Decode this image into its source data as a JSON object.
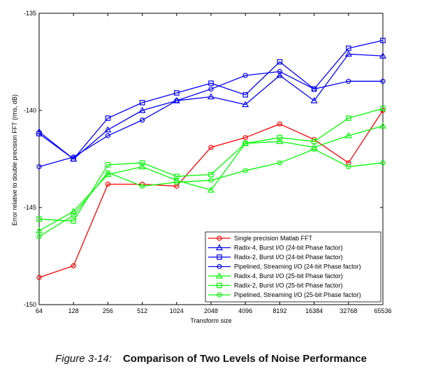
{
  "chart_data": {
    "type": "line",
    "xlabel": "Transform size",
    "ylabel": "Error relative to double precision FFT (rms, dB)",
    "categories": [
      "64",
      "128",
      "256",
      "512",
      "1024",
      "2048",
      "4096",
      "8192",
      "16384",
      "32768",
      "65536"
    ],
    "ylim": [
      -150,
      -135
    ],
    "yticks": [
      "-135",
      "-140",
      "-145",
      "-150"
    ],
    "grid": false,
    "legend_position": "bottom-right",
    "series": [
      {
        "name": "Single precision Matlab FFT",
        "color": "#ff0000",
        "marker": "circle",
        "values": [
          -148.6,
          -148.0,
          -143.8,
          -143.8,
          -143.9,
          -141.9,
          -141.4,
          -140.7,
          -141.5,
          -142.7,
          -140.0
        ]
      },
      {
        "name": "Radix-4, Burst I/O (24-bit Phase factor)",
        "color": "#0000ff",
        "marker": "triangle",
        "values": [
          -141.1,
          -142.5,
          -141.0,
          -140.0,
          -139.5,
          -139.3,
          -139.7,
          -138.2,
          -139.5,
          -137.1,
          -137.2
        ]
      },
      {
        "name": "Radix-2, Burst I/O (24-bit Phase factor)",
        "color": "#0000ff",
        "marker": "square",
        "values": [
          -141.2,
          -142.5,
          -140.4,
          -139.6,
          -139.1,
          -138.6,
          -139.2,
          -137.5,
          -138.9,
          -136.8,
          -136.4
        ]
      },
      {
        "name": "Pipelined, Streaming I/O (24-bit Phase factor)",
        "color": "#0000ff",
        "marker": "circle",
        "values": [
          -142.9,
          -142.4,
          -141.3,
          -140.5,
          -139.5,
          -138.9,
          -138.2,
          -138.0,
          -138.9,
          -138.5,
          -138.5
        ]
      },
      {
        "name": "Radix-4, Burst I/O (25-bit Phase factor)",
        "color": "#00ff00",
        "marker": "triangle",
        "values": [
          -146.2,
          -145.2,
          -143.3,
          -142.9,
          -143.6,
          -144.1,
          -141.7,
          -141.6,
          -141.9,
          -141.3,
          -140.8
        ]
      },
      {
        "name": "Radix-2, Burst I/O (25-bit Phase factor)",
        "color": "#00ff00",
        "marker": "square",
        "values": [
          -145.6,
          -145.7,
          -142.8,
          -142.7,
          -143.4,
          -143.3,
          -141.7,
          -141.4,
          -141.6,
          -140.4,
          -139.9
        ]
      },
      {
        "name": "Pipelined, Streaming I/O (25-bit Phase factor)",
        "color": "#00ff00",
        "marker": "circle",
        "values": [
          -146.5,
          -145.4,
          -143.2,
          -143.9,
          -143.7,
          -143.6,
          -143.1,
          -142.7,
          -142.0,
          -142.9,
          -142.7
        ]
      }
    ]
  },
  "caption": {
    "number": "Figure 3-14:",
    "title": "Comparison of Two Levels of Noise Performance"
  }
}
